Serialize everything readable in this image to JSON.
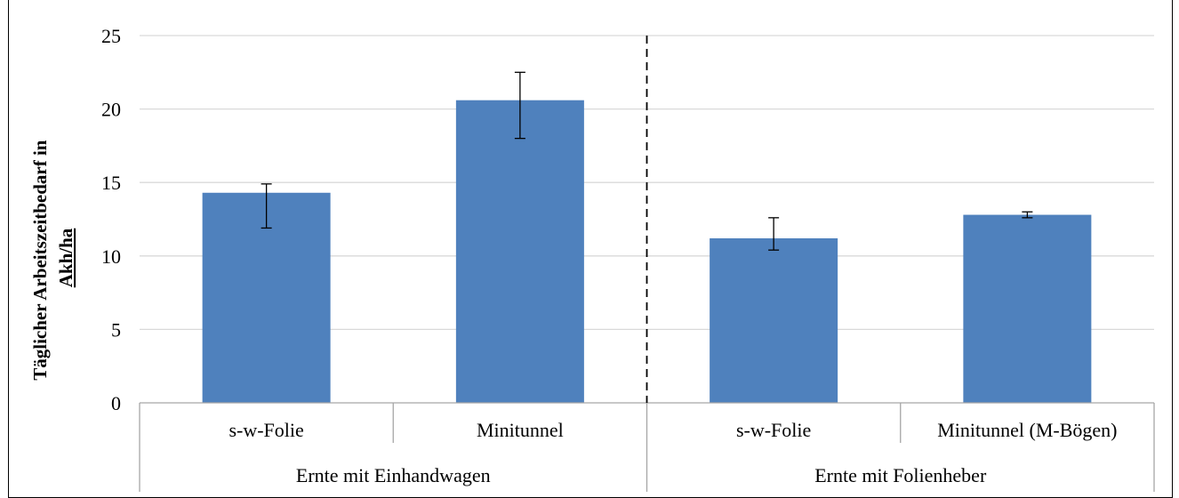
{
  "chart_data": {
    "type": "bar",
    "title": "",
    "ylabel_line1": "Täglicher Arbeitszeitbedarf in",
    "ylabel_line2": "Akh/ha",
    "ylim": [
      0,
      25
    ],
    "yticks": [
      0,
      5,
      10,
      15,
      20,
      25
    ],
    "grid": true,
    "bar_color": "#4f81bd",
    "categories": [
      "s-w-Folie",
      "Minitunnel",
      "s-w-Folie",
      "Minitunnel (M-Bögen)"
    ],
    "groups": [
      {
        "label": "Ernte mit Einhandwagen",
        "members": [
          0,
          1
        ]
      },
      {
        "label": "Ernte mit Folienheber",
        "members": [
          2,
          3
        ]
      }
    ],
    "values": [
      14.3,
      20.6,
      11.2,
      12.8
    ],
    "error_low": [
      11.9,
      18.0,
      10.4,
      12.6
    ],
    "error_high": [
      14.9,
      22.5,
      12.6,
      13.0
    ],
    "divider": "dashed line between groups"
  }
}
